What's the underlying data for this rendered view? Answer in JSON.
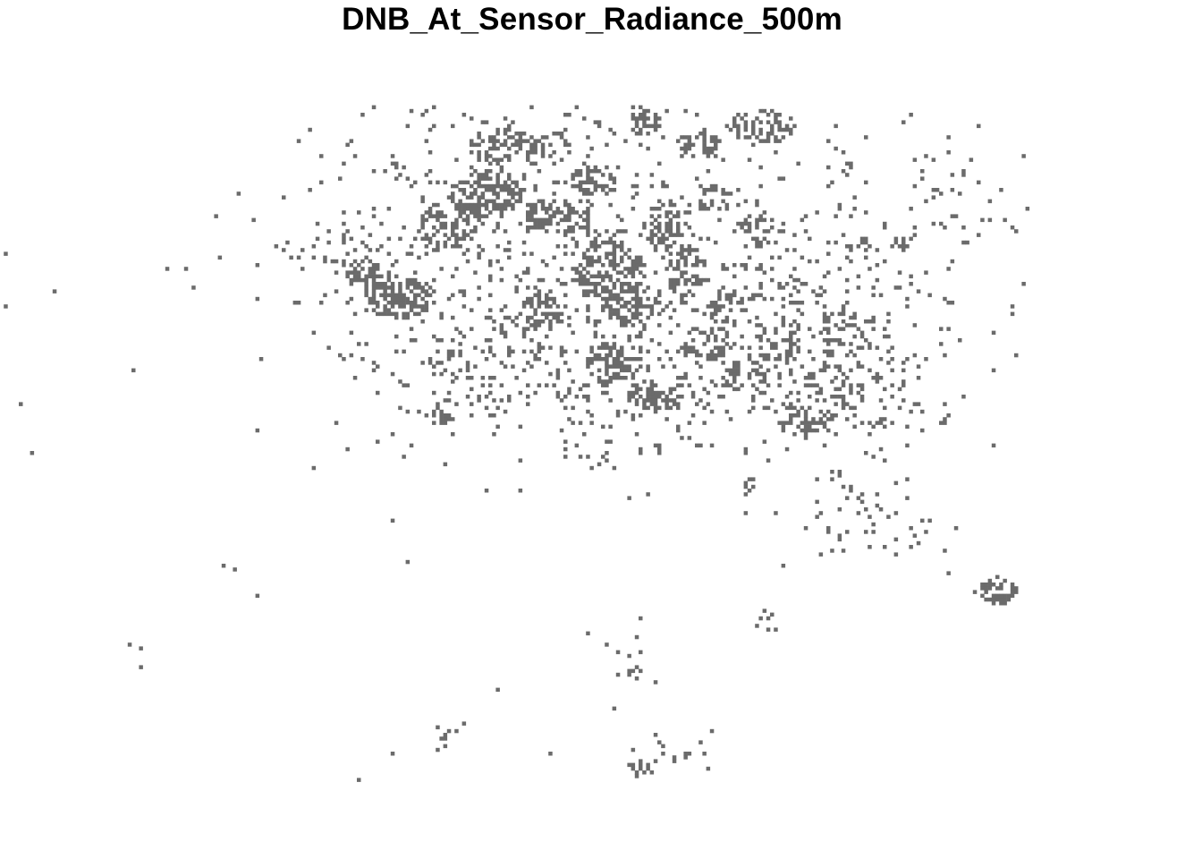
{
  "title": "DNB_At_Sensor_Radiance_500m",
  "colors": {
    "background": "#ffffff",
    "pixel_fill": "#6b6b6b",
    "title_text": "#000000"
  },
  "raster": {
    "description_type": "binary raster map of lit pixels",
    "legend": "none",
    "axes": "none"
  }
}
